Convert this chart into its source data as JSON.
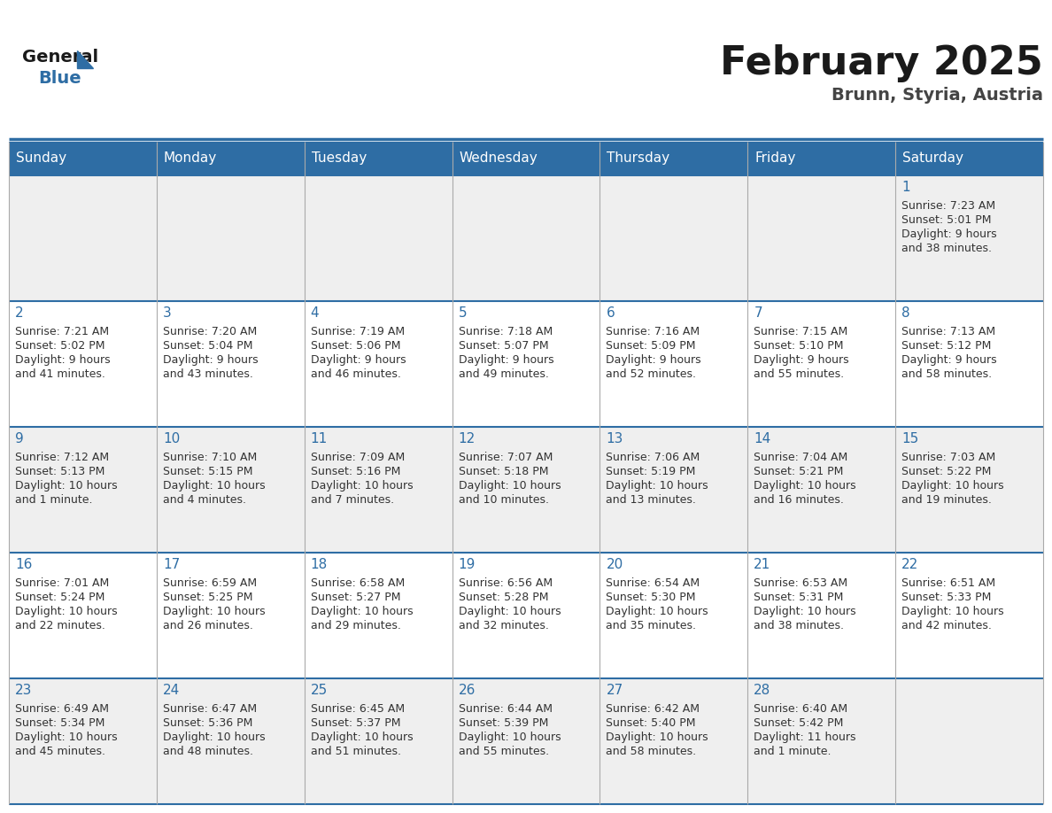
{
  "title": "February 2025",
  "subtitle": "Brunn, Styria, Austria",
  "header_bg": "#2E6DA4",
  "header_text_color": "#FFFFFF",
  "day_names": [
    "Sunday",
    "Monday",
    "Tuesday",
    "Wednesday",
    "Thursday",
    "Friday",
    "Saturday"
  ],
  "row1_bg": "#EFEFEF",
  "row2_bg": "#FFFFFF",
  "cell_text_color": "#333333",
  "day_num_color": "#2E6DA4",
  "grid_line_color": "#2E6DA4",
  "inner_line_color": "#CCCCCC",
  "days": [
    {
      "date": 1,
      "col": 6,
      "row": 0,
      "sunrise": "7:23 AM",
      "sunset": "5:01 PM",
      "daylight": "9 hours",
      "daylight2": "and 38 minutes."
    },
    {
      "date": 2,
      "col": 0,
      "row": 1,
      "sunrise": "7:21 AM",
      "sunset": "5:02 PM",
      "daylight": "9 hours",
      "daylight2": "and 41 minutes."
    },
    {
      "date": 3,
      "col": 1,
      "row": 1,
      "sunrise": "7:20 AM",
      "sunset": "5:04 PM",
      "daylight": "9 hours",
      "daylight2": "and 43 minutes."
    },
    {
      "date": 4,
      "col": 2,
      "row": 1,
      "sunrise": "7:19 AM",
      "sunset": "5:06 PM",
      "daylight": "9 hours",
      "daylight2": "and 46 minutes."
    },
    {
      "date": 5,
      "col": 3,
      "row": 1,
      "sunrise": "7:18 AM",
      "sunset": "5:07 PM",
      "daylight": "9 hours",
      "daylight2": "and 49 minutes."
    },
    {
      "date": 6,
      "col": 4,
      "row": 1,
      "sunrise": "7:16 AM",
      "sunset": "5:09 PM",
      "daylight": "9 hours",
      "daylight2": "and 52 minutes."
    },
    {
      "date": 7,
      "col": 5,
      "row": 1,
      "sunrise": "7:15 AM",
      "sunset": "5:10 PM",
      "daylight": "9 hours",
      "daylight2": "and 55 minutes."
    },
    {
      "date": 8,
      "col": 6,
      "row": 1,
      "sunrise": "7:13 AM",
      "sunset": "5:12 PM",
      "daylight": "9 hours",
      "daylight2": "and 58 minutes."
    },
    {
      "date": 9,
      "col": 0,
      "row": 2,
      "sunrise": "7:12 AM",
      "sunset": "5:13 PM",
      "daylight": "10 hours",
      "daylight2": "and 1 minute."
    },
    {
      "date": 10,
      "col": 1,
      "row": 2,
      "sunrise": "7:10 AM",
      "sunset": "5:15 PM",
      "daylight": "10 hours",
      "daylight2": "and 4 minutes."
    },
    {
      "date": 11,
      "col": 2,
      "row": 2,
      "sunrise": "7:09 AM",
      "sunset": "5:16 PM",
      "daylight": "10 hours",
      "daylight2": "and 7 minutes."
    },
    {
      "date": 12,
      "col": 3,
      "row": 2,
      "sunrise": "7:07 AM",
      "sunset": "5:18 PM",
      "daylight": "10 hours",
      "daylight2": "and 10 minutes."
    },
    {
      "date": 13,
      "col": 4,
      "row": 2,
      "sunrise": "7:06 AM",
      "sunset": "5:19 PM",
      "daylight": "10 hours",
      "daylight2": "and 13 minutes."
    },
    {
      "date": 14,
      "col": 5,
      "row": 2,
      "sunrise": "7:04 AM",
      "sunset": "5:21 PM",
      "daylight": "10 hours",
      "daylight2": "and 16 minutes."
    },
    {
      "date": 15,
      "col": 6,
      "row": 2,
      "sunrise": "7:03 AM",
      "sunset": "5:22 PM",
      "daylight": "10 hours",
      "daylight2": "and 19 minutes."
    },
    {
      "date": 16,
      "col": 0,
      "row": 3,
      "sunrise": "7:01 AM",
      "sunset": "5:24 PM",
      "daylight": "10 hours",
      "daylight2": "and 22 minutes."
    },
    {
      "date": 17,
      "col": 1,
      "row": 3,
      "sunrise": "6:59 AM",
      "sunset": "5:25 PM",
      "daylight": "10 hours",
      "daylight2": "and 26 minutes."
    },
    {
      "date": 18,
      "col": 2,
      "row": 3,
      "sunrise": "6:58 AM",
      "sunset": "5:27 PM",
      "daylight": "10 hours",
      "daylight2": "and 29 minutes."
    },
    {
      "date": 19,
      "col": 3,
      "row": 3,
      "sunrise": "6:56 AM",
      "sunset": "5:28 PM",
      "daylight": "10 hours",
      "daylight2": "and 32 minutes."
    },
    {
      "date": 20,
      "col": 4,
      "row": 3,
      "sunrise": "6:54 AM",
      "sunset": "5:30 PM",
      "daylight": "10 hours",
      "daylight2": "and 35 minutes."
    },
    {
      "date": 21,
      "col": 5,
      "row": 3,
      "sunrise": "6:53 AM",
      "sunset": "5:31 PM",
      "daylight": "10 hours",
      "daylight2": "and 38 minutes."
    },
    {
      "date": 22,
      "col": 6,
      "row": 3,
      "sunrise": "6:51 AM",
      "sunset": "5:33 PM",
      "daylight": "10 hours",
      "daylight2": "and 42 minutes."
    },
    {
      "date": 23,
      "col": 0,
      "row": 4,
      "sunrise": "6:49 AM",
      "sunset": "5:34 PM",
      "daylight": "10 hours",
      "daylight2": "and 45 minutes."
    },
    {
      "date": 24,
      "col": 1,
      "row": 4,
      "sunrise": "6:47 AM",
      "sunset": "5:36 PM",
      "daylight": "10 hours",
      "daylight2": "and 48 minutes."
    },
    {
      "date": 25,
      "col": 2,
      "row": 4,
      "sunrise": "6:45 AM",
      "sunset": "5:37 PM",
      "daylight": "10 hours",
      "daylight2": "and 51 minutes."
    },
    {
      "date": 26,
      "col": 3,
      "row": 4,
      "sunrise": "6:44 AM",
      "sunset": "5:39 PM",
      "daylight": "10 hours",
      "daylight2": "and 55 minutes."
    },
    {
      "date": 27,
      "col": 4,
      "row": 4,
      "sunrise": "6:42 AM",
      "sunset": "5:40 PM",
      "daylight": "10 hours",
      "daylight2": "and 58 minutes."
    },
    {
      "date": 28,
      "col": 5,
      "row": 4,
      "sunrise": "6:40 AM",
      "sunset": "5:42 PM",
      "daylight": "11 hours",
      "daylight2": "and 1 minute."
    }
  ]
}
